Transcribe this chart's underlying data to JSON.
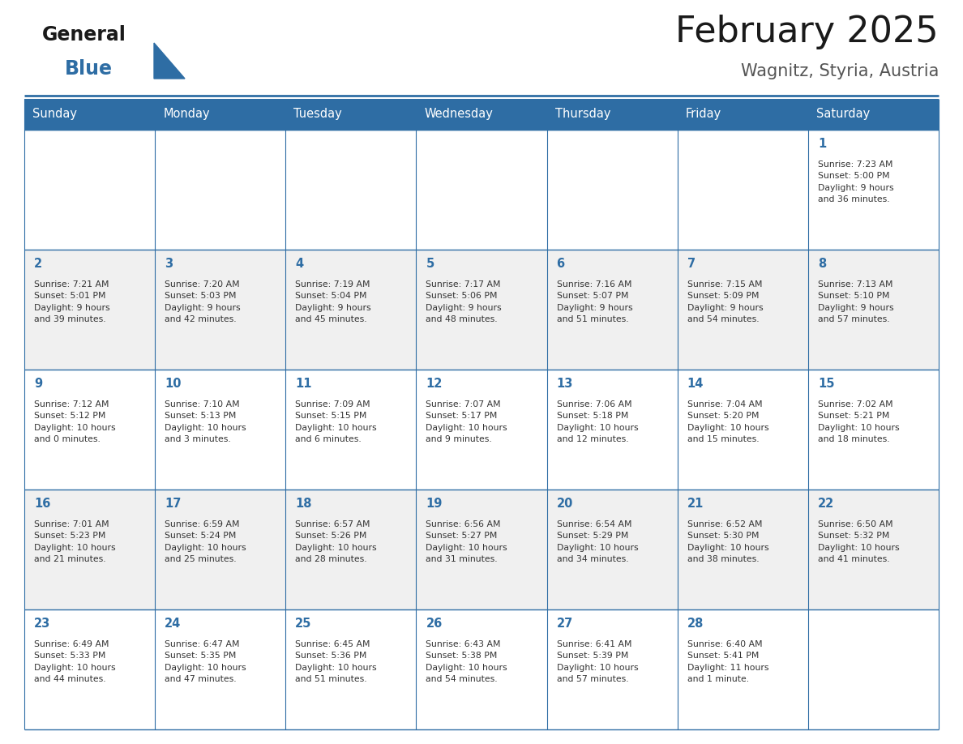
{
  "title": "February 2025",
  "subtitle": "Wagnitz, Styria, Austria",
  "header_bg_color": "#2E6DA4",
  "header_text_color": "#FFFFFF",
  "cell_bg_even": "#FFFFFF",
  "cell_bg_odd": "#F0F0F0",
  "border_color": "#2E6DA4",
  "title_color": "#1a1a1a",
  "subtitle_color": "#555555",
  "day_number_color": "#2E6DA4",
  "cell_text_color": "#333333",
  "days_of_week": [
    "Sunday",
    "Monday",
    "Tuesday",
    "Wednesday",
    "Thursday",
    "Friday",
    "Saturday"
  ],
  "weeks": [
    [
      {
        "day": null,
        "info": null
      },
      {
        "day": null,
        "info": null
      },
      {
        "day": null,
        "info": null
      },
      {
        "day": null,
        "info": null
      },
      {
        "day": null,
        "info": null
      },
      {
        "day": null,
        "info": null
      },
      {
        "day": 1,
        "info": "Sunrise: 7:23 AM\nSunset: 5:00 PM\nDaylight: 9 hours\nand 36 minutes."
      }
    ],
    [
      {
        "day": 2,
        "info": "Sunrise: 7:21 AM\nSunset: 5:01 PM\nDaylight: 9 hours\nand 39 minutes."
      },
      {
        "day": 3,
        "info": "Sunrise: 7:20 AM\nSunset: 5:03 PM\nDaylight: 9 hours\nand 42 minutes."
      },
      {
        "day": 4,
        "info": "Sunrise: 7:19 AM\nSunset: 5:04 PM\nDaylight: 9 hours\nand 45 minutes."
      },
      {
        "day": 5,
        "info": "Sunrise: 7:17 AM\nSunset: 5:06 PM\nDaylight: 9 hours\nand 48 minutes."
      },
      {
        "day": 6,
        "info": "Sunrise: 7:16 AM\nSunset: 5:07 PM\nDaylight: 9 hours\nand 51 minutes."
      },
      {
        "day": 7,
        "info": "Sunrise: 7:15 AM\nSunset: 5:09 PM\nDaylight: 9 hours\nand 54 minutes."
      },
      {
        "day": 8,
        "info": "Sunrise: 7:13 AM\nSunset: 5:10 PM\nDaylight: 9 hours\nand 57 minutes."
      }
    ],
    [
      {
        "day": 9,
        "info": "Sunrise: 7:12 AM\nSunset: 5:12 PM\nDaylight: 10 hours\nand 0 minutes."
      },
      {
        "day": 10,
        "info": "Sunrise: 7:10 AM\nSunset: 5:13 PM\nDaylight: 10 hours\nand 3 minutes."
      },
      {
        "day": 11,
        "info": "Sunrise: 7:09 AM\nSunset: 5:15 PM\nDaylight: 10 hours\nand 6 minutes."
      },
      {
        "day": 12,
        "info": "Sunrise: 7:07 AM\nSunset: 5:17 PM\nDaylight: 10 hours\nand 9 minutes."
      },
      {
        "day": 13,
        "info": "Sunrise: 7:06 AM\nSunset: 5:18 PM\nDaylight: 10 hours\nand 12 minutes."
      },
      {
        "day": 14,
        "info": "Sunrise: 7:04 AM\nSunset: 5:20 PM\nDaylight: 10 hours\nand 15 minutes."
      },
      {
        "day": 15,
        "info": "Sunrise: 7:02 AM\nSunset: 5:21 PM\nDaylight: 10 hours\nand 18 minutes."
      }
    ],
    [
      {
        "day": 16,
        "info": "Sunrise: 7:01 AM\nSunset: 5:23 PM\nDaylight: 10 hours\nand 21 minutes."
      },
      {
        "day": 17,
        "info": "Sunrise: 6:59 AM\nSunset: 5:24 PM\nDaylight: 10 hours\nand 25 minutes."
      },
      {
        "day": 18,
        "info": "Sunrise: 6:57 AM\nSunset: 5:26 PM\nDaylight: 10 hours\nand 28 minutes."
      },
      {
        "day": 19,
        "info": "Sunrise: 6:56 AM\nSunset: 5:27 PM\nDaylight: 10 hours\nand 31 minutes."
      },
      {
        "day": 20,
        "info": "Sunrise: 6:54 AM\nSunset: 5:29 PM\nDaylight: 10 hours\nand 34 minutes."
      },
      {
        "day": 21,
        "info": "Sunrise: 6:52 AM\nSunset: 5:30 PM\nDaylight: 10 hours\nand 38 minutes."
      },
      {
        "day": 22,
        "info": "Sunrise: 6:50 AM\nSunset: 5:32 PM\nDaylight: 10 hours\nand 41 minutes."
      }
    ],
    [
      {
        "day": 23,
        "info": "Sunrise: 6:49 AM\nSunset: 5:33 PM\nDaylight: 10 hours\nand 44 minutes."
      },
      {
        "day": 24,
        "info": "Sunrise: 6:47 AM\nSunset: 5:35 PM\nDaylight: 10 hours\nand 47 minutes."
      },
      {
        "day": 25,
        "info": "Sunrise: 6:45 AM\nSunset: 5:36 PM\nDaylight: 10 hours\nand 51 minutes."
      },
      {
        "day": 26,
        "info": "Sunrise: 6:43 AM\nSunset: 5:38 PM\nDaylight: 10 hours\nand 54 minutes."
      },
      {
        "day": 27,
        "info": "Sunrise: 6:41 AM\nSunset: 5:39 PM\nDaylight: 10 hours\nand 57 minutes."
      },
      {
        "day": 28,
        "info": "Sunrise: 6:40 AM\nSunset: 5:41 PM\nDaylight: 11 hours\nand 1 minute."
      },
      {
        "day": null,
        "info": null
      }
    ]
  ],
  "figsize": [
    11.88,
    9.18
  ],
  "dpi": 100
}
